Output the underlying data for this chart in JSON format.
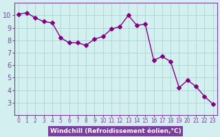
{
  "x": [
    0,
    1,
    2,
    3,
    4,
    5,
    6,
    7,
    8,
    9,
    10,
    11,
    12,
    13,
    14,
    15,
    16,
    17,
    18,
    19,
    20,
    21,
    22,
    23
  ],
  "y": [
    10.1,
    10.2,
    9.8,
    9.5,
    9.4,
    8.2,
    7.8,
    7.8,
    7.6,
    8.1,
    8.3,
    8.9,
    9.1,
    10.0,
    9.2,
    9.3,
    6.4,
    6.7,
    6.3,
    4.2,
    4.8,
    4.3,
    3.5,
    2.9
  ],
  "line_color": "#800080",
  "marker": "D",
  "marker_size": 3,
  "background_color": "#d4efef",
  "grid_color": "#b0d8d8",
  "xlabel": "Windchill (Refroidissement éolien,°C)",
  "xlabel_bg": "#7b3f9e",
  "xlabel_fg": "#ffffff",
  "tick_label_color": "#7b3f9e",
  "axis_color": "#7b3f9e",
  "ylim": [
    2,
    11
  ],
  "xlim": [
    -0.5,
    23.5
  ],
  "yticks": [
    3,
    4,
    5,
    6,
    7,
    8,
    9,
    10
  ],
  "xticks": [
    0,
    1,
    2,
    3,
    4,
    5,
    6,
    7,
    8,
    9,
    10,
    11,
    12,
    13,
    14,
    15,
    16,
    17,
    18,
    19,
    20,
    21,
    22,
    23
  ]
}
